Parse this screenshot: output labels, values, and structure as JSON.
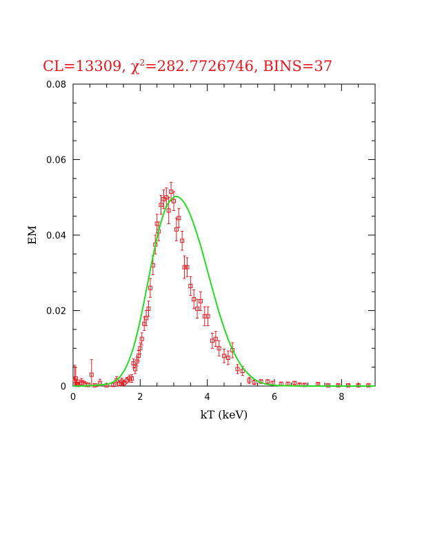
{
  "chart_data": {
    "type": "scatter",
    "title_parts": {
      "pre": "CL=13309, ",
      "chi": "χ",
      "sup": "2",
      "post": "=282.7726746, BINS=37"
    },
    "xlabel": "kT (keV)",
    "ylabel": "EM",
    "xlim": [
      0,
      9
    ],
    "ylim": [
      0,
      0.08
    ],
    "x_ticks": [
      "0",
      "2",
      "4",
      "6",
      "8"
    ],
    "y_ticks": [
      "0",
      "0.02",
      "0.04",
      "0.06",
      "0.08"
    ],
    "grid": false,
    "colors": {
      "data": "#e8151b",
      "model": "#22dd22",
      "axes": "#000000"
    },
    "series": [
      {
        "kind": "data_points_with_errors",
        "points": [
          [
            0.05,
            0.0015,
            0.004
          ],
          [
            0.08,
            0.002,
            0.003
          ],
          [
            0.12,
            0.0005,
            0.001
          ],
          [
            0.15,
            0.0003,
            0.0006
          ],
          [
            0.2,
            0.0006,
            0.001
          ],
          [
            0.25,
            0.0008,
            0.0012
          ],
          [
            0.3,
            0.0005,
            0.001
          ],
          [
            0.35,
            0.0004,
            0.0008
          ],
          [
            0.4,
            0.0003,
            0.0006
          ],
          [
            0.45,
            0.0003,
            0.0005
          ],
          [
            0.55,
            0.003,
            0.004
          ],
          [
            0.65,
            0.0002,
            0.0004
          ],
          [
            0.8,
            0.0008,
            0.001
          ],
          [
            1.0,
            0.0002,
            0.0004
          ],
          [
            1.2,
            0.0003,
            0.0005
          ],
          [
            1.3,
            0.0015,
            0.001
          ],
          [
            1.38,
            0.0006,
            0.0008
          ],
          [
            1.45,
            0.0012,
            0.0009
          ],
          [
            1.52,
            0.0008,
            0.0007
          ],
          [
            1.6,
            0.0015,
            0.0008
          ],
          [
            1.68,
            0.002,
            0.0009
          ],
          [
            1.75,
            0.002,
            0.001
          ],
          [
            1.8,
            0.006,
            0.0012
          ],
          [
            1.85,
            0.0045,
            0.0012
          ],
          [
            1.9,
            0.0065,
            0.0012
          ],
          [
            1.95,
            0.008,
            0.0014
          ],
          [
            2.0,
            0.01,
            0.0015
          ],
          [
            2.05,
            0.0125,
            0.0016
          ],
          [
            2.12,
            0.0165,
            0.0018
          ],
          [
            2.18,
            0.018,
            0.002
          ],
          [
            2.25,
            0.0205,
            0.002
          ],
          [
            2.3,
            0.026,
            0.0025
          ],
          [
            2.38,
            0.032,
            0.0025
          ],
          [
            2.45,
            0.0375,
            0.0025
          ],
          [
            2.5,
            0.043,
            0.0025
          ],
          [
            2.55,
            0.041,
            0.0025
          ],
          [
            2.62,
            0.048,
            0.0025
          ],
          [
            2.7,
            0.0495,
            0.0025
          ],
          [
            2.78,
            0.05,
            0.0025
          ],
          [
            2.85,
            0.0465,
            0.0035
          ],
          [
            2.92,
            0.0515,
            0.0025
          ],
          [
            3.0,
            0.049,
            0.0025
          ],
          [
            3.08,
            0.0415,
            0.003
          ],
          [
            3.15,
            0.0445,
            0.0025
          ],
          [
            3.25,
            0.0385,
            0.0025
          ],
          [
            3.32,
            0.0315,
            0.003
          ],
          [
            3.4,
            0.0315,
            0.0025
          ],
          [
            3.5,
            0.0265,
            0.0025
          ],
          [
            3.6,
            0.023,
            0.0025
          ],
          [
            3.7,
            0.0205,
            0.0025
          ],
          [
            3.8,
            0.0225,
            0.0025
          ],
          [
            3.92,
            0.0185,
            0.0025
          ],
          [
            4.02,
            0.0185,
            0.0025
          ],
          [
            4.15,
            0.012,
            0.002
          ],
          [
            4.25,
            0.0125,
            0.002
          ],
          [
            4.35,
            0.01,
            0.002
          ],
          [
            4.5,
            0.008,
            0.0018
          ],
          [
            4.62,
            0.0075,
            0.0018
          ],
          [
            4.75,
            0.0095,
            0.002
          ],
          [
            4.9,
            0.0045,
            0.0012
          ],
          [
            5.05,
            0.004,
            0.0012
          ],
          [
            5.25,
            0.0015,
            0.0008
          ],
          [
            5.4,
            0.001,
            0.0006
          ],
          [
            5.6,
            0.0012,
            0.0005
          ],
          [
            5.8,
            0.0012,
            0.0005
          ],
          [
            5.95,
            0.0008,
            0.0005
          ],
          [
            6.2,
            0.0006,
            0.0004
          ],
          [
            6.4,
            0.0006,
            0.0004
          ],
          [
            6.6,
            0.0008,
            0.0004
          ],
          [
            6.75,
            0.0004,
            0.0003
          ],
          [
            6.9,
            0.0003,
            0.0003
          ],
          [
            7.3,
            0.0005,
            0.0003
          ],
          [
            7.6,
            0.0002,
            0.0002
          ],
          [
            7.9,
            0.0002,
            0.0002
          ],
          [
            8.2,
            0.0002,
            0.0002
          ],
          [
            8.5,
            0.0002,
            0.0002
          ],
          [
            8.8,
            0.0002,
            0.0002
          ]
        ]
      },
      {
        "kind": "model_curve",
        "x": [
          0,
          0.5,
          1.0,
          1.2,
          1.4,
          1.6,
          1.8,
          2.0,
          2.2,
          2.4,
          2.6,
          2.8,
          3.0,
          3.1,
          3.2,
          3.3,
          3.4,
          3.5,
          3.6,
          3.8,
          4.0,
          4.2,
          4.4,
          4.6,
          4.8,
          5.0,
          5.2,
          5.5,
          6.0,
          7.0,
          8.0,
          9.0
        ],
        "y": [
          0,
          0.0001,
          0.0005,
          0.0011,
          0.0025,
          0.0054,
          0.0103,
          0.0174,
          0.0262,
          0.0352,
          0.0428,
          0.0479,
          0.05,
          0.0502,
          0.0497,
          0.0487,
          0.0472,
          0.0452,
          0.0428,
          0.0372,
          0.0307,
          0.0242,
          0.0181,
          0.0129,
          0.0087,
          0.0056,
          0.0034,
          0.0013,
          0.0002,
          0,
          0,
          0
        ]
      }
    ]
  }
}
